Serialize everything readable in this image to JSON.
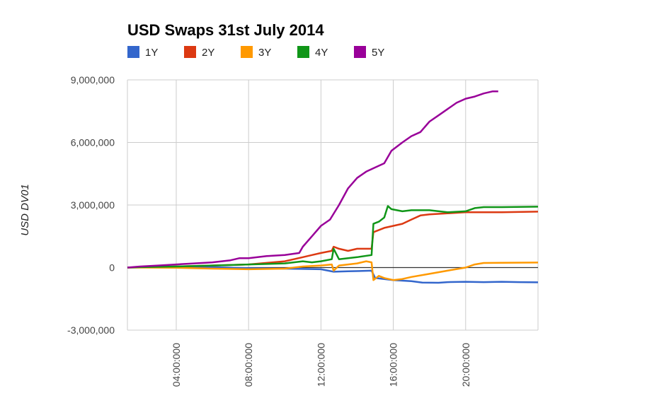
{
  "chart_data": {
    "type": "line",
    "title": "USD Swaps 31st July 2014",
    "xlabel": "",
    "ylabel": "USD DV01",
    "ylim": [
      -3000000,
      9000000
    ],
    "xlim": [
      1.3,
      24.0
    ],
    "y_ticks": [
      -3000000,
      0,
      3000000,
      6000000,
      9000000
    ],
    "y_tick_labels": [
      "-3,000,000",
      "0",
      "3,000,000",
      "6,000,000",
      "9,000,000"
    ],
    "x_ticks": [
      4,
      8,
      12,
      16,
      20
    ],
    "x_tick_labels": [
      "04:00:000",
      "08:00:000",
      "12:00:000",
      "16:00:000",
      "20:00:000"
    ],
    "x_tick_suffix": ",",
    "grid": true,
    "legend_position": "top-left",
    "series": [
      {
        "name": "1Y",
        "color": "#3366cc",
        "points": [
          [
            1.3,
            0
          ],
          [
            2,
            10000
          ],
          [
            3,
            20000
          ],
          [
            4,
            30000
          ],
          [
            6,
            20000
          ],
          [
            8,
            -30000
          ],
          [
            10,
            -50000
          ],
          [
            12,
            -80000
          ],
          [
            12.7,
            -200000
          ],
          [
            13.5,
            -180000
          ],
          [
            14.8,
            -150000
          ],
          [
            15,
            -500000
          ],
          [
            15.5,
            -550000
          ],
          [
            16,
            -600000
          ],
          [
            17,
            -650000
          ],
          [
            17.6,
            -720000
          ],
          [
            18.5,
            -730000
          ],
          [
            19,
            -700000
          ],
          [
            20,
            -680000
          ],
          [
            21,
            -700000
          ],
          [
            22,
            -680000
          ],
          [
            23,
            -700000
          ],
          [
            24,
            -710000
          ]
        ]
      },
      {
        "name": "2Y",
        "color": "#dc3912",
        "points": [
          [
            1.3,
            0
          ],
          [
            2,
            20000
          ],
          [
            4,
            50000
          ],
          [
            6,
            100000
          ],
          [
            8,
            150000
          ],
          [
            10,
            300000
          ],
          [
            11,
            500000
          ],
          [
            11.5,
            600000
          ],
          [
            12,
            700000
          ],
          [
            12.6,
            800000
          ],
          [
            12.7,
            1000000
          ],
          [
            13,
            900000
          ],
          [
            13.5,
            800000
          ],
          [
            14,
            900000
          ],
          [
            14.8,
            900000
          ],
          [
            14.9,
            1700000
          ],
          [
            15.2,
            1800000
          ],
          [
            15.5,
            1900000
          ],
          [
            16,
            2000000
          ],
          [
            16.5,
            2100000
          ],
          [
            17,
            2300000
          ],
          [
            17.5,
            2500000
          ],
          [
            18,
            2550000
          ],
          [
            19,
            2600000
          ],
          [
            20,
            2650000
          ],
          [
            21,
            2650000
          ],
          [
            22,
            2650000
          ],
          [
            24,
            2680000
          ]
        ]
      },
      {
        "name": "3Y",
        "color": "#ff9900",
        "points": [
          [
            1.3,
            0
          ],
          [
            2,
            0
          ],
          [
            4,
            -10000
          ],
          [
            6,
            -50000
          ],
          [
            8,
            -80000
          ],
          [
            10,
            -50000
          ],
          [
            11,
            50000
          ],
          [
            12,
            100000
          ],
          [
            12.6,
            150000
          ],
          [
            12.7,
            -150000
          ],
          [
            13,
            100000
          ],
          [
            14,
            200000
          ],
          [
            14.5,
            300000
          ],
          [
            14.8,
            250000
          ],
          [
            14.9,
            -600000
          ],
          [
            15.2,
            -400000
          ],
          [
            15.5,
            -500000
          ],
          [
            16,
            -600000
          ],
          [
            16.5,
            -550000
          ],
          [
            17,
            -450000
          ],
          [
            18,
            -300000
          ],
          [
            19,
            -150000
          ],
          [
            20,
            0
          ],
          [
            20.5,
            150000
          ],
          [
            21,
            220000
          ],
          [
            22,
            230000
          ],
          [
            24,
            240000
          ]
        ]
      },
      {
        "name": "4Y",
        "color": "#109618",
        "points": [
          [
            1.3,
            0
          ],
          [
            2,
            20000
          ],
          [
            4,
            50000
          ],
          [
            6,
            100000
          ],
          [
            8,
            150000
          ],
          [
            10,
            200000
          ],
          [
            11,
            300000
          ],
          [
            11.5,
            250000
          ],
          [
            12,
            300000
          ],
          [
            12.6,
            400000
          ],
          [
            12.7,
            900000
          ],
          [
            13,
            400000
          ],
          [
            14,
            500000
          ],
          [
            14.8,
            600000
          ],
          [
            14.9,
            2100000
          ],
          [
            15.2,
            2200000
          ],
          [
            15.5,
            2400000
          ],
          [
            15.7,
            2950000
          ],
          [
            15.9,
            2800000
          ],
          [
            16.5,
            2700000
          ],
          [
            17,
            2750000
          ],
          [
            18,
            2750000
          ],
          [
            19,
            2650000
          ],
          [
            20,
            2700000
          ],
          [
            20.5,
            2850000
          ],
          [
            21,
            2900000
          ],
          [
            22,
            2900000
          ],
          [
            24,
            2920000
          ]
        ]
      },
      {
        "name": "5Y",
        "color": "#990099",
        "points": [
          [
            1.3,
            0
          ],
          [
            2,
            50000
          ],
          [
            3,
            100000
          ],
          [
            4,
            150000
          ],
          [
            5,
            200000
          ],
          [
            6,
            250000
          ],
          [
            7,
            350000
          ],
          [
            7.5,
            450000
          ],
          [
            8,
            450000
          ],
          [
            9,
            550000
          ],
          [
            10,
            600000
          ],
          [
            10.8,
            700000
          ],
          [
            11,
            1000000
          ],
          [
            11.5,
            1500000
          ],
          [
            12,
            2000000
          ],
          [
            12.5,
            2300000
          ],
          [
            13,
            3000000
          ],
          [
            13.5,
            3800000
          ],
          [
            14,
            4300000
          ],
          [
            14.5,
            4600000
          ],
          [
            15,
            4800000
          ],
          [
            15.5,
            5000000
          ],
          [
            15.9,
            5600000
          ],
          [
            16.5,
            6000000
          ],
          [
            17,
            6300000
          ],
          [
            17.5,
            6500000
          ],
          [
            18,
            7000000
          ],
          [
            18.5,
            7300000
          ],
          [
            19,
            7600000
          ],
          [
            19.5,
            7900000
          ],
          [
            20,
            8100000
          ],
          [
            20.5,
            8200000
          ],
          [
            21,
            8350000
          ],
          [
            21.5,
            8450000
          ],
          [
            21.8,
            8450000
          ]
        ]
      }
    ]
  }
}
